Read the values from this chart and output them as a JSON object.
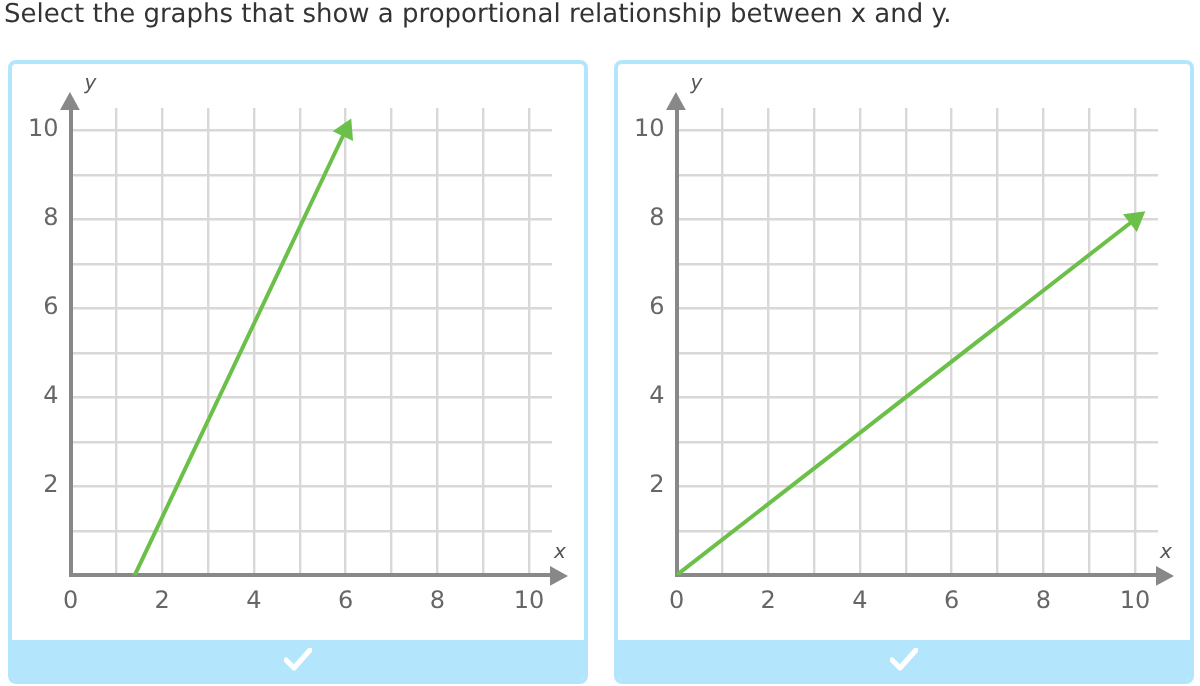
{
  "chart_data": [
    {
      "type": "line",
      "title": "Select the graphs that show a proportional relationship between x and y.",
      "xlabel": "x",
      "ylabel": "y",
      "xlim": [
        0,
        10.5
      ],
      "ylim": [
        0,
        10.5
      ],
      "xticks": [
        0,
        {
          "value": 1,
          "label": null
        },
        2,
        {
          "value": 3,
          "label": null
        },
        4,
        {
          "value": 5,
          "label": null
        },
        6,
        {
          "value": 7,
          "label": null
        },
        8,
        {
          "value": 9,
          "label": null
        },
        10
      ],
      "yticks": [
        {
          "value": 1,
          "label": null
        },
        2,
        {
          "value": 3,
          "label": null
        },
        4,
        {
          "value": 5,
          "label": null
        },
        6,
        {
          "value": 7,
          "label": null
        },
        8,
        {
          "value": 9,
          "label": null
        },
        10
      ],
      "grid": true,
      "legend": false,
      "line_style": "solid",
      "series": [
        {
          "color": "#6cc04a",
          "x": [
            1.4,
            6
          ],
          "values": [
            0,
            10
          ]
        }
      ]
    },
    {
      "type": "line",
      "xlabel": "x",
      "ylabel": "y",
      "xlim": [
        0,
        10.5
      ],
      "ylim": [
        0,
        10.5
      ],
      "xticks": [
        0,
        {
          "value": 1,
          "label": null
        },
        2,
        {
          "value": 3,
          "label": null
        },
        4,
        {
          "value": 5,
          "label": null
        },
        6,
        {
          "value": 7,
          "label": null
        },
        8,
        {
          "value": 9,
          "label": null
        },
        10
      ],
      "yticks": [
        {
          "value": 1,
          "label": null
        },
        2,
        {
          "value": 3,
          "label": null
        },
        4,
        {
          "value": 5,
          "label": null
        },
        6,
        {
          "value": 7,
          "label": null
        },
        8,
        {
          "value": 9,
          "label": null
        },
        10
      ],
      "grid": true,
      "legend": false,
      "line_style": "solid",
      "series": [
        {
          "color": "#6cc04a",
          "x": [
            0,
            10
          ],
          "values": [
            0,
            8
          ]
        }
      ]
    }
  ]
}
